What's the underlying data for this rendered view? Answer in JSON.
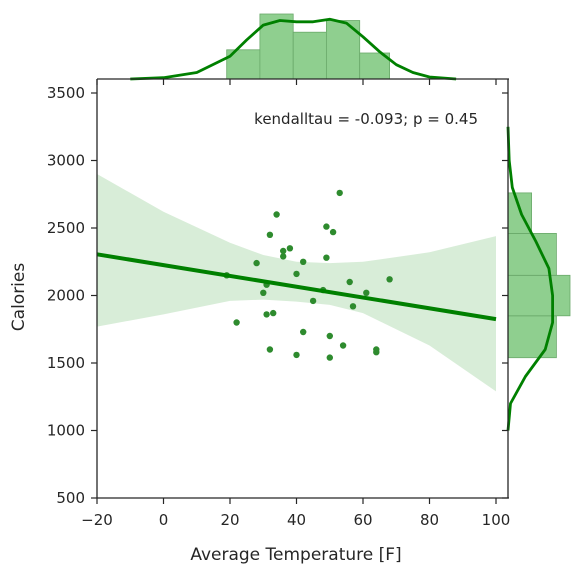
{
  "chart_data": {
    "type": "scatter",
    "xlabel": "Average Temperature [F]",
    "ylabel": "Calories",
    "xlim": [
      -20,
      100
    ],
    "ylim": [
      500,
      3500
    ],
    "xticks": [
      "−20",
      "0",
      "20",
      "40",
      "60",
      "80",
      "100"
    ],
    "xtick_values": [
      -20,
      0,
      20,
      40,
      60,
      80,
      100
    ],
    "yticks": [
      "500",
      "1000",
      "1500",
      "2000",
      "2500",
      "3000",
      "3500"
    ],
    "ytick_values": [
      500,
      1000,
      1500,
      2000,
      2500,
      3000,
      3500
    ],
    "annotation": "kendalltau = -0.093; p = 0.45",
    "grid": false,
    "colors": {
      "main": "#008000",
      "points": "#2e8b2e",
      "fill": "#d4ebd4",
      "hist": "#8fcf8f"
    },
    "points": [
      {
        "x": 19,
        "y": 2150
      },
      {
        "x": 22,
        "y": 1800
      },
      {
        "x": 28,
        "y": 2240
      },
      {
        "x": 30,
        "y": 2020
      },
      {
        "x": 31,
        "y": 2080
      },
      {
        "x": 31,
        "y": 1860
      },
      {
        "x": 32,
        "y": 2450
      },
      {
        "x": 32,
        "y": 1600
      },
      {
        "x": 33,
        "y": 1870
      },
      {
        "x": 34,
        "y": 2600
      },
      {
        "x": 36,
        "y": 2330
      },
      {
        "x": 36,
        "y": 2290
      },
      {
        "x": 38,
        "y": 2350
      },
      {
        "x": 40,
        "y": 2160
      },
      {
        "x": 40,
        "y": 1560
      },
      {
        "x": 42,
        "y": 2250
      },
      {
        "x": 42,
        "y": 1730
      },
      {
        "x": 45,
        "y": 1960
      },
      {
        "x": 48,
        "y": 2040
      },
      {
        "x": 49,
        "y": 2510
      },
      {
        "x": 49,
        "y": 2280
      },
      {
        "x": 50,
        "y": 1700
      },
      {
        "x": 50,
        "y": 1540
      },
      {
        "x": 51,
        "y": 2470
      },
      {
        "x": 53,
        "y": 2760
      },
      {
        "x": 54,
        "y": 1630
      },
      {
        "x": 56,
        "y": 2100
      },
      {
        "x": 57,
        "y": 1920
      },
      {
        "x": 61,
        "y": 2020
      },
      {
        "x": 64,
        "y": 1600
      },
      {
        "x": 64,
        "y": 1580
      },
      {
        "x": 68,
        "y": 2120
      }
    ],
    "regression": {
      "x": [
        -20,
        100
      ],
      "y": [
        2305,
        1825
      ]
    },
    "ci_band": {
      "x": [
        -20,
        0,
        20,
        30,
        40,
        50,
        60,
        80,
        100
      ],
      "upper": [
        2900,
        2620,
        2390,
        2300,
        2250,
        2240,
        2250,
        2320,
        2440
      ],
      "lower": [
        1770,
        1860,
        1960,
        1970,
        1955,
        1930,
        1870,
        1630,
        1290
      ]
    },
    "top_hist": {
      "bins": [
        [
          19,
          29
        ],
        [
          29,
          39
        ],
        [
          39,
          49
        ],
        [
          49,
          59
        ],
        [
          59,
          68
        ]
      ],
      "density": [
        0.45,
        1.0,
        0.72,
        0.9,
        0.4
      ]
    },
    "top_kde": {
      "x": [
        -10,
        0,
        10,
        20,
        25,
        30,
        35,
        40,
        45,
        50,
        55,
        60,
        65,
        70,
        75,
        80,
        88
      ],
      "density": [
        0.0,
        0.02,
        0.1,
        0.35,
        0.6,
        0.83,
        0.9,
        0.88,
        0.88,
        0.92,
        0.86,
        0.65,
        0.42,
        0.22,
        0.1,
        0.03,
        0.0
      ]
    },
    "right_hist": {
      "bins": [
        [
          1540,
          1850
        ],
        [
          1850,
          2150
        ],
        [
          2150,
          2460
        ],
        [
          2460,
          2760
        ]
      ],
      "density": [
        0.78,
        1.0,
        0.78,
        0.38
      ]
    },
    "right_kde": {
      "y": [
        1000,
        1200,
        1400,
        1600,
        1800,
        2000,
        2200,
        2400,
        2600,
        2800,
        3000,
        3250
      ],
      "density": [
        0.0,
        0.04,
        0.28,
        0.6,
        0.72,
        0.72,
        0.66,
        0.45,
        0.22,
        0.07,
        0.02,
        0.0
      ]
    }
  }
}
